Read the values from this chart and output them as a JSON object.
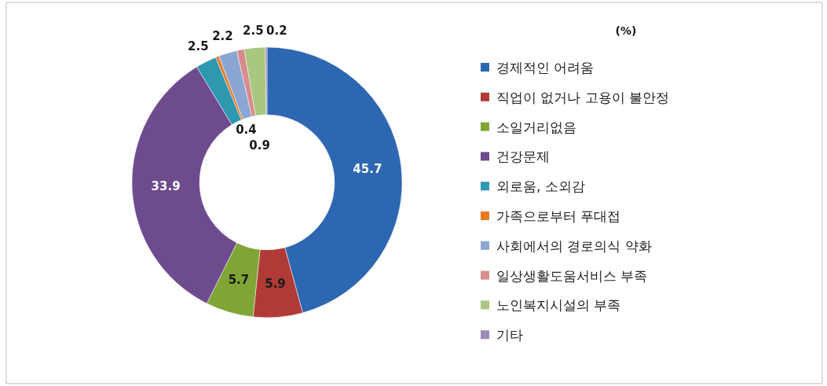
{
  "chart_data": {
    "type": "donut",
    "legend_title": "(%)",
    "legend": "right",
    "data_labels": true,
    "categories": [
      "경제적인 어려움",
      "직업이 없거나 고용이 불안정",
      "소일거리없음",
      "건강문제",
      "외로움, 소외감",
      "가족으로부터 푸대접",
      "사회에서의 경로의식 약화",
      "일상생활도움서비스 부족",
      "노인복지시설의 부족",
      "기타"
    ],
    "values": [
      45.7,
      5.9,
      5.7,
      33.9,
      2.5,
      0.4,
      2.2,
      0.9,
      2.5,
      0.2
    ],
    "colors": [
      "#2e67b1",
      "#b03a36",
      "#7fa535",
      "#6e4a8e",
      "#2e98b0",
      "#e87b22",
      "#8ba6d3",
      "#d78c8c",
      "#a9c77f",
      "#9c8ab8"
    ]
  }
}
